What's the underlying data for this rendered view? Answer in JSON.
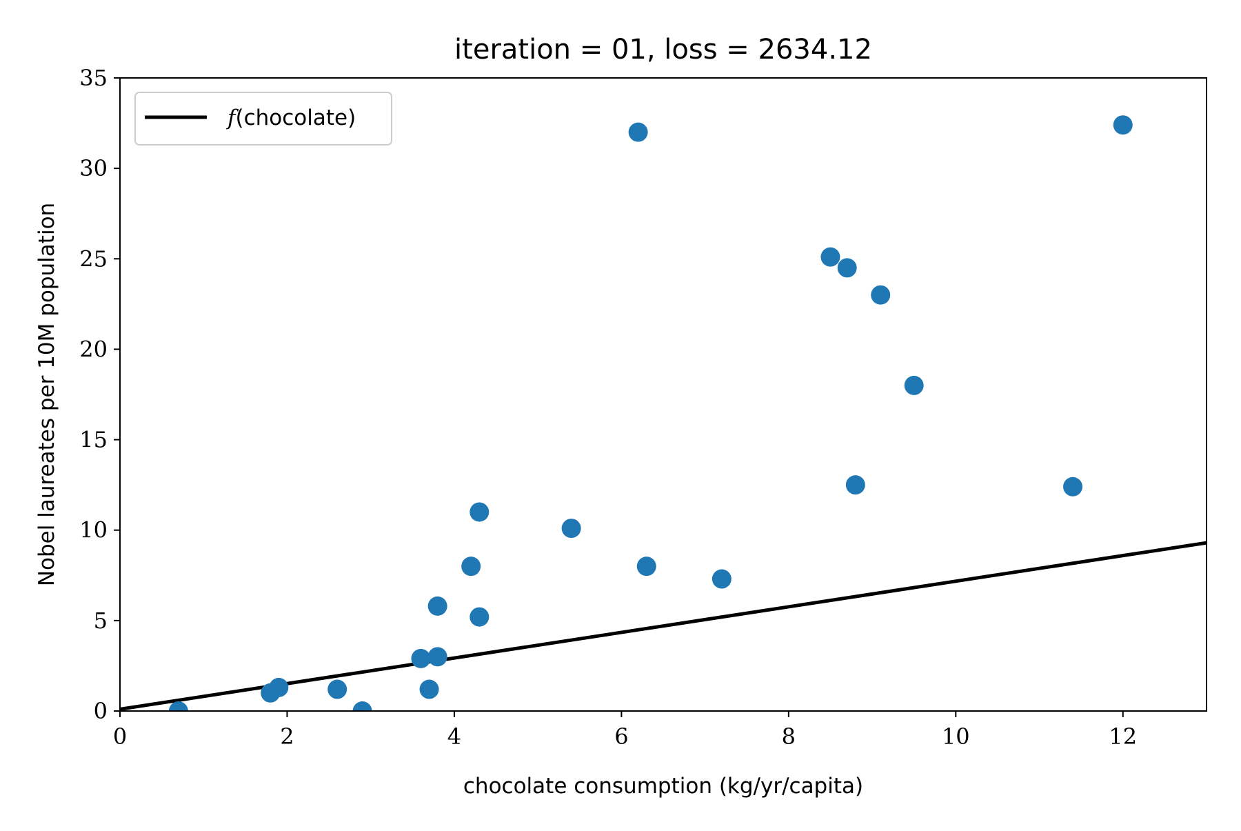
{
  "chart_data": {
    "type": "scatter",
    "title": "iteration = 01, loss = 2634.12",
    "xlabel": "chocolate consumption (kg/yr/capita)",
    "ylabel": "Nobel laureates per 10M population",
    "xlim": [
      0,
      13
    ],
    "ylim": [
      0,
      35
    ],
    "xticks": [
      0,
      2,
      4,
      6,
      8,
      10,
      12
    ],
    "yticks": [
      0,
      5,
      10,
      15,
      20,
      25,
      30,
      35
    ],
    "grid": false,
    "legend": {
      "placement": "top-left",
      "entries": [
        {
          "fx": "f",
          "text": "(chocolate)",
          "color": "#000000"
        }
      ]
    },
    "points_color": "#1f77b4",
    "points": [
      {
        "x": 0.7,
        "y": 0.0
      },
      {
        "x": 1.8,
        "y": 1.0
      },
      {
        "x": 1.9,
        "y": 1.3
      },
      {
        "x": 2.6,
        "y": 1.2
      },
      {
        "x": 2.9,
        "y": 0.0
      },
      {
        "x": 3.6,
        "y": 2.9
      },
      {
        "x": 3.7,
        "y": 1.2
      },
      {
        "x": 3.8,
        "y": 3.0
      },
      {
        "x": 3.8,
        "y": 5.8
      },
      {
        "x": 4.2,
        "y": 8.0
      },
      {
        "x": 4.3,
        "y": 11.0
      },
      {
        "x": 4.3,
        "y": 5.2
      },
      {
        "x": 5.4,
        "y": 10.1
      },
      {
        "x": 6.2,
        "y": 32.0
      },
      {
        "x": 6.3,
        "y": 8.0
      },
      {
        "x": 7.2,
        "y": 7.3
      },
      {
        "x": 8.5,
        "y": 25.1
      },
      {
        "x": 8.7,
        "y": 24.5
      },
      {
        "x": 8.8,
        "y": 12.5
      },
      {
        "x": 9.1,
        "y": 23.0
      },
      {
        "x": 9.5,
        "y": 18.0
      },
      {
        "x": 11.4,
        "y": 12.4
      },
      {
        "x": 12.0,
        "y": 32.4
      }
    ],
    "line": {
      "color": "#000000",
      "x": [
        0,
        13
      ],
      "y": [
        0.1,
        9.3
      ]
    }
  }
}
